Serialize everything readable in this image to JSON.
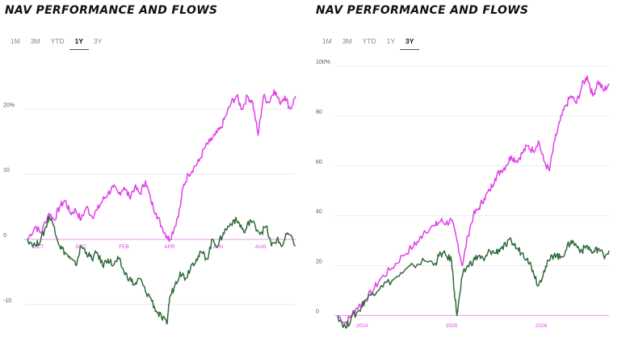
{
  "left_panel": {
    "title": "NAV PERFORMANCE AND FLOWS",
    "tabs": [
      "1M",
      "3M",
      "YTD",
      "1Y",
      "3Y"
    ],
    "active_tab": "1Y"
  },
  "right_panel": {
    "title": "NAV PERFORMANCE AND FLOWS",
    "tabs": [
      "1M",
      "3M",
      "YTD",
      "1Y",
      "3Y"
    ],
    "active_tab": "3Y"
  },
  "colors": {
    "nav": "#e040e8",
    "flows": "#2e6b3a",
    "zero_line": "#e79ae9",
    "grid": "#ececec",
    "tick": "#555555"
  },
  "chart_data": [
    {
      "type": "line",
      "title": "",
      "xlabel": "",
      "ylabel": "",
      "ylim": [
        -13,
        25
      ],
      "yticks": [
        -10,
        0,
        10,
        20
      ],
      "ytick_labels": [
        "-10",
        "0",
        "10",
        "20%"
      ],
      "xlim": [
        0,
        1
      ],
      "xtick_labels": [
        {
          "label": "OCT",
          "x": 0.04
        },
        {
          "label": "DEC",
          "x": 0.2
        },
        {
          "label": "FEB",
          "x": 0.36
        },
        {
          "label": "APR",
          "x": 0.53
        },
        {
          "label": "JUN",
          "x": 0.71
        },
        {
          "label": "AUG",
          "x": 0.87
        }
      ],
      "grid": true,
      "series": [
        {
          "color": "#e040e8",
          "points": [
            [
              0,
              0
            ],
            [
              0.03,
              2
            ],
            [
              0.05,
              1
            ],
            [
              0.08,
              4
            ],
            [
              0.1,
              3
            ],
            [
              0.12,
              5
            ],
            [
              0.14,
              6
            ],
            [
              0.16,
              4
            ],
            [
              0.18,
              4.5
            ],
            [
              0.2,
              3
            ],
            [
              0.22,
              5
            ],
            [
              0.24,
              3.5
            ],
            [
              0.26,
              4.5
            ],
            [
              0.28,
              6
            ],
            [
              0.3,
              7
            ],
            [
              0.32,
              8
            ],
            [
              0.34,
              7
            ],
            [
              0.36,
              8
            ],
            [
              0.38,
              6.5
            ],
            [
              0.4,
              8
            ],
            [
              0.42,
              7
            ],
            [
              0.44,
              9
            ],
            [
              0.46,
              6
            ],
            [
              0.48,
              4
            ],
            [
              0.5,
              2
            ],
            [
              0.52,
              0.5
            ],
            [
              0.53,
              0
            ],
            [
              0.55,
              2
            ],
            [
              0.57,
              5
            ],
            [
              0.58,
              8
            ],
            [
              0.6,
              10
            ],
            [
              0.62,
              11
            ],
            [
              0.64,
              12
            ],
            [
              0.66,
              14
            ],
            [
              0.68,
              15
            ],
            [
              0.7,
              16
            ],
            [
              0.72,
              17
            ],
            [
              0.74,
              19
            ],
            [
              0.76,
              21
            ],
            [
              0.78,
              22
            ],
            [
              0.8,
              20
            ],
            [
              0.82,
              22
            ],
            [
              0.84,
              21
            ],
            [
              0.86,
              16
            ],
            [
              0.88,
              22
            ],
            [
              0.9,
              21
            ],
            [
              0.92,
              23
            ],
            [
              0.94,
              21
            ],
            [
              0.96,
              22
            ],
            [
              0.98,
              20
            ],
            [
              1,
              22
            ]
          ]
        },
        {
          "color": "#2e6b3a",
          "points": [
            [
              0,
              0
            ],
            [
              0.03,
              -1
            ],
            [
              0.05,
              0
            ],
            [
              0.07,
              2
            ],
            [
              0.08,
              3.5
            ],
            [
              0.1,
              2
            ],
            [
              0.12,
              -1
            ],
            [
              0.14,
              -2
            ],
            [
              0.16,
              -3
            ],
            [
              0.18,
              -4
            ],
            [
              0.2,
              -1
            ],
            [
              0.22,
              -2
            ],
            [
              0.24,
              -3
            ],
            [
              0.26,
              -2
            ],
            [
              0.28,
              -4
            ],
            [
              0.3,
              -3
            ],
            [
              0.32,
              -4
            ],
            [
              0.34,
              -3
            ],
            [
              0.36,
              -5
            ],
            [
              0.38,
              -6
            ],
            [
              0.4,
              -7
            ],
            [
              0.42,
              -6
            ],
            [
              0.44,
              -8
            ],
            [
              0.46,
              -9
            ],
            [
              0.48,
              -11
            ],
            [
              0.5,
              -12
            ],
            [
              0.52,
              -13
            ],
            [
              0.53,
              -9
            ],
            [
              0.55,
              -7
            ],
            [
              0.57,
              -5
            ],
            [
              0.59,
              -6
            ],
            [
              0.61,
              -4
            ],
            [
              0.63,
              -3
            ],
            [
              0.65,
              -2
            ],
            [
              0.67,
              -3
            ],
            [
              0.69,
              0
            ],
            [
              0.71,
              -1
            ],
            [
              0.73,
              1
            ],
            [
              0.75,
              2
            ],
            [
              0.77,
              3
            ],
            [
              0.79,
              2.5
            ],
            [
              0.81,
              1
            ],
            [
              0.83,
              3
            ],
            [
              0.85,
              2
            ],
            [
              0.87,
              1
            ],
            [
              0.89,
              2
            ],
            [
              0.91,
              -1
            ],
            [
              0.93,
              0
            ],
            [
              0.95,
              -1
            ],
            [
              0.97,
              1
            ],
            [
              1,
              -1
            ]
          ]
        }
      ]
    },
    {
      "type": "line",
      "title": "",
      "xlabel": "",
      "ylabel": "",
      "ylim": [
        -6,
        100
      ],
      "yticks": [
        0,
        20,
        40,
        60,
        80,
        100
      ],
      "ytick_labels": [
        "0",
        "20",
        "40",
        "60",
        "80",
        "100%"
      ],
      "xlim": [
        0,
        1
      ],
      "xtick_labels": [
        {
          "label": "2024",
          "x": 0.09
        },
        {
          "label": "2025",
          "x": 0.42
        },
        {
          "label": "2026",
          "x": 0.75
        }
      ],
      "grid": true,
      "series": [
        {
          "color": "#e040e8",
          "points": [
            [
              0,
              0
            ],
            [
              0.03,
              -3
            ],
            [
              0.05,
              0
            ],
            [
              0.07,
              3
            ],
            [
              0.1,
              6
            ],
            [
              0.13,
              10
            ],
            [
              0.16,
              15
            ],
            [
              0.2,
              19
            ],
            [
              0.24,
              24
            ],
            [
              0.28,
              28
            ],
            [
              0.3,
              30
            ],
            [
              0.32,
              34
            ],
            [
              0.36,
              36
            ],
            [
              0.38,
              38
            ],
            [
              0.4,
              37
            ],
            [
              0.42,
              38
            ],
            [
              0.44,
              30
            ],
            [
              0.46,
              20
            ],
            [
              0.48,
              32
            ],
            [
              0.5,
              40
            ],
            [
              0.52,
              43
            ],
            [
              0.54,
              47
            ],
            [
              0.56,
              50
            ],
            [
              0.58,
              55
            ],
            [
              0.6,
              58
            ],
            [
              0.62,
              60
            ],
            [
              0.64,
              64
            ],
            [
              0.66,
              62
            ],
            [
              0.68,
              65
            ],
            [
              0.7,
              68
            ],
            [
              0.72,
              66
            ],
            [
              0.74,
              70
            ],
            [
              0.76,
              62
            ],
            [
              0.78,
              58
            ],
            [
              0.8,
              70
            ],
            [
              0.82,
              78
            ],
            [
              0.84,
              84
            ],
            [
              0.86,
              88
            ],
            [
              0.88,
              85
            ],
            [
              0.9,
              92
            ],
            [
              0.92,
              96
            ],
            [
              0.94,
              88
            ],
            [
              0.96,
              94
            ],
            [
              0.98,
              90
            ],
            [
              1,
              93
            ]
          ]
        },
        {
          "color": "#2e6b3a",
          "points": [
            [
              0,
              0
            ],
            [
              0.03,
              -5
            ],
            [
              0.05,
              -1
            ],
            [
              0.08,
              2
            ],
            [
              0.1,
              6
            ],
            [
              0.13,
              9
            ],
            [
              0.16,
              12
            ],
            [
              0.2,
              14
            ],
            [
              0.24,
              17
            ],
            [
              0.28,
              20
            ],
            [
              0.32,
              22
            ],
            [
              0.36,
              21
            ],
            [
              0.38,
              25
            ],
            [
              0.4,
              24
            ],
            [
              0.42,
              22
            ],
            [
              0.43,
              10
            ],
            [
              0.44,
              0
            ],
            [
              0.46,
              16
            ],
            [
              0.48,
              20
            ],
            [
              0.5,
              22
            ],
            [
              0.52,
              24
            ],
            [
              0.54,
              22
            ],
            [
              0.56,
              26
            ],
            [
              0.58,
              25
            ],
            [
              0.6,
              27
            ],
            [
              0.62,
              28
            ],
            [
              0.64,
              30
            ],
            [
              0.66,
              27
            ],
            [
              0.68,
              25
            ],
            [
              0.7,
              23
            ],
            [
              0.72,
              18
            ],
            [
              0.74,
              12
            ],
            [
              0.76,
              18
            ],
            [
              0.78,
              22
            ],
            [
              0.8,
              25
            ],
            [
              0.82,
              23
            ],
            [
              0.84,
              26
            ],
            [
              0.86,
              30
            ],
            [
              0.88,
              28
            ],
            [
              0.9,
              26
            ],
            [
              0.92,
              28
            ],
            [
              0.94,
              25
            ],
            [
              0.96,
              27
            ],
            [
              0.98,
              24
            ],
            [
              1,
              26
            ]
          ]
        }
      ]
    }
  ]
}
